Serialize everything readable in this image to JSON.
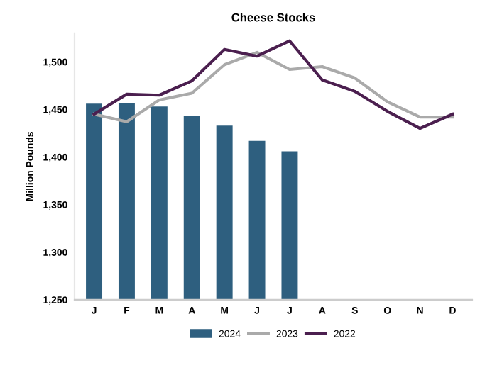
{
  "chart_data": {
    "type": "bar",
    "title": "Cheese Stocks",
    "ylabel": "Million Pounds",
    "categories": [
      "J",
      "F",
      "M",
      "A",
      "M",
      "J",
      "J",
      "A",
      "S",
      "O",
      "N",
      "D"
    ],
    "ylim": [
      1250,
      1530
    ],
    "yticks": [
      {
        "value": 1250,
        "label": "1,250"
      },
      {
        "value": 1300,
        "label": "1,300"
      },
      {
        "value": 1350,
        "label": "1,350"
      },
      {
        "value": 1400,
        "label": "1,400"
      },
      {
        "value": 1450,
        "label": "1,450"
      },
      {
        "value": 1500,
        "label": "1,500"
      }
    ],
    "grid": false,
    "legend": "bottom",
    "series": [
      {
        "name": "2024",
        "color": "#2e5f7f",
        "values": [
          1456,
          1457,
          1453,
          1443,
          1433,
          1417,
          1406,
          null,
          null,
          null,
          null,
          null
        ]
      },
      {
        "name": "2023",
        "type": "line",
        "color": "#aaaaaa",
        "values": [
          1445,
          1437,
          1460,
          1467,
          1497,
          1510,
          1492,
          1495,
          1483,
          1458,
          1442,
          1442
        ]
      },
      {
        "name": "2022",
        "type": "line",
        "color": "#4b1f4f",
        "values": [
          1445,
          1466,
          1465,
          1480,
          1513,
          1506,
          1522,
          1481,
          1469,
          1448,
          1430,
          1445
        ]
      }
    ]
  }
}
